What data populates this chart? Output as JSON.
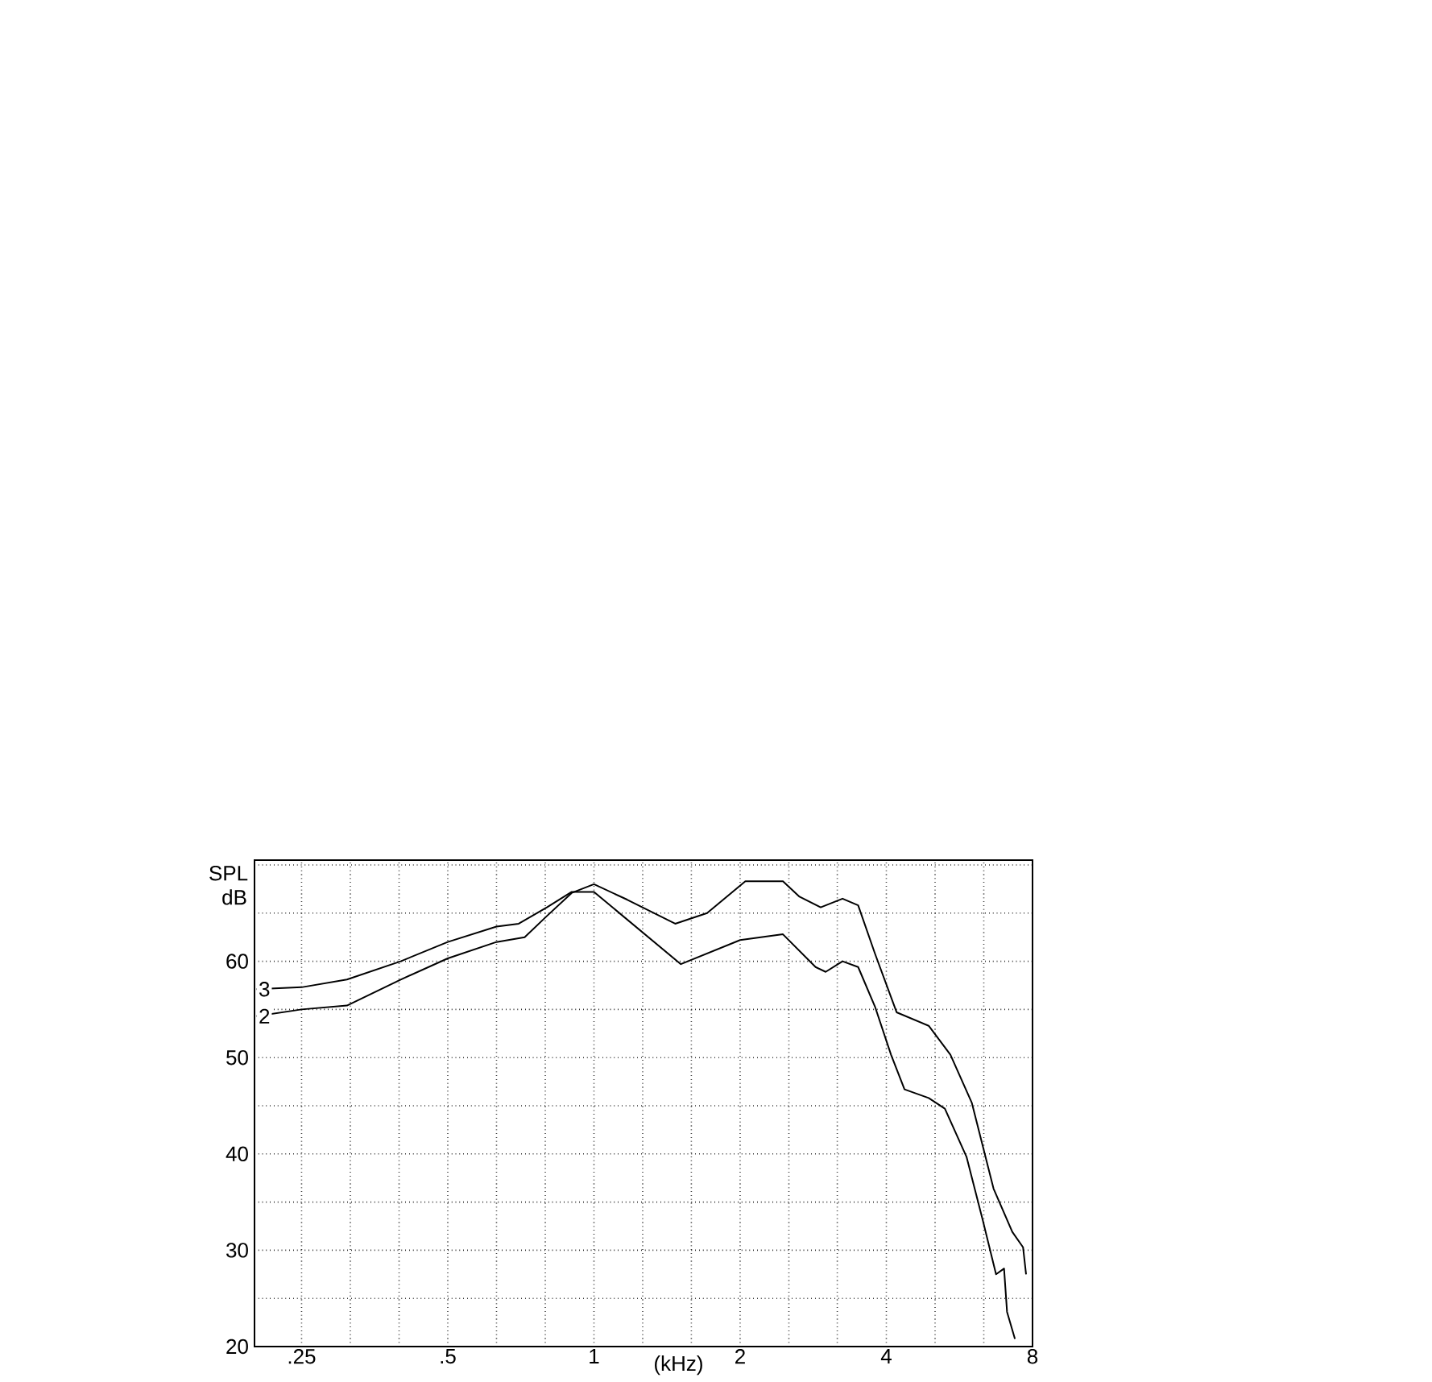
{
  "chart_data": {
    "type": "line",
    "xlabel": "(kHz)",
    "ylabel": "SPL dB",
    "log": "x",
    "grid": true,
    "marker": "none",
    "line_style": "solid",
    "xlim": [
      0.2,
      8
    ],
    "ylim": [
      20,
      70.5
    ],
    "xticks": [
      {
        "value": 0.25,
        "label": ".25"
      },
      {
        "value": 0.315,
        "label": null
      },
      {
        "value": 0.397,
        "label": null
      },
      {
        "value": 0.5,
        "label": ".5"
      },
      {
        "value": 0.63,
        "label": null
      },
      {
        "value": 0.794,
        "label": null
      },
      1,
      {
        "value": 1.26,
        "label": null
      },
      {
        "value": 1.587,
        "label": null
      },
      2,
      {
        "value": 2.52,
        "label": null
      },
      {
        "value": 3.17,
        "label": null
      },
      4,
      {
        "value": 5.04,
        "label": null
      },
      {
        "value": 6.35,
        "label": null
      },
      8
    ],
    "yticks": [
      20,
      {
        "value": 25,
        "label": null
      },
      30,
      {
        "value": 35,
        "label": null
      },
      40,
      {
        "value": 45,
        "label": null
      },
      50,
      {
        "value": 55,
        "label": null
      },
      60,
      {
        "value": 65,
        "label": null
      },
      {
        "value": 70,
        "label": null
      }
    ],
    "series": [
      {
        "name": "3",
        "color": "#000000",
        "x": [
          0.202,
          0.25,
          0.31,
          0.4,
          0.5,
          0.63,
          0.7,
          0.8,
          0.9,
          1.0,
          1.51,
          2.0,
          2.45,
          2.86,
          3.0,
          3.25,
          3.5,
          3.79,
          4.09,
          4.36,
          4.89,
          5.28,
          5.85,
          6.32,
          6.73,
          6.99,
          7.09,
          7.36
        ],
        "values": [
          57.1,
          57.3,
          58.1,
          60,
          62,
          63.6,
          63.9,
          65.6,
          67.2,
          67.2,
          59.7,
          62.2,
          62.8,
          59.4,
          58.9,
          60,
          59.4,
          55.3,
          50.3,
          46.7,
          45.8,
          44.7,
          39.7,
          33.1,
          27.5,
          28.1,
          23.6,
          20.8
        ]
      },
      {
        "name": "2",
        "color": "#000000",
        "x": [
          0.202,
          0.25,
          0.31,
          0.4,
          0.5,
          0.63,
          0.72,
          0.8,
          0.9,
          1.0,
          1.17,
          1.47,
          1.71,
          2.05,
          2.45,
          2.65,
          2.93,
          3.25,
          3.5,
          3.79,
          4.2,
          4.89,
          5.42,
          6.0,
          6.65,
          7.27,
          7.65,
          7.76
        ],
        "values": [
          54.3,
          55,
          55.4,
          58.1,
          60.3,
          62,
          62.5,
          64.7,
          67.1,
          68,
          66.4,
          63.9,
          65,
          68.3,
          68.3,
          66.7,
          65.6,
          66.5,
          65.8,
          60.8,
          54.7,
          53.3,
          50.3,
          45.3,
          36.4,
          31.9,
          30.3,
          27.5
        ]
      }
    ]
  }
}
